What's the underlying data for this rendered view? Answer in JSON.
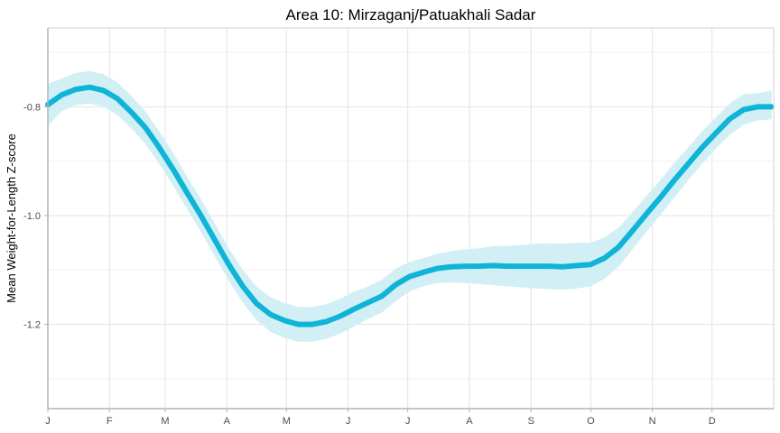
{
  "chart_data": {
    "type": "line",
    "title": "Area 10: Mirzaganj/Patuakhali Sadar",
    "xlabel": "",
    "ylabel": "Mean Weight-for-Length Z-score",
    "x_ticks": [
      "J",
      "F",
      "M",
      "A",
      "M",
      "J",
      "J",
      "A",
      "S",
      "O",
      "N",
      "D"
    ],
    "y_ticks": [
      -0.8,
      -1.0,
      -1.2
    ],
    "y_tick_labels": [
      "-0.8",
      "-1.0",
      "-1.2"
    ],
    "ylim": [
      -1.355,
      -0.655
    ],
    "xlim": [
      1,
      366
    ],
    "grid": true,
    "colors": {
      "line": "#0fb4d6",
      "band": "#d2eff6",
      "grid": "#e3e3e3",
      "axis": "#b3b3b3"
    },
    "series": [
      {
        "x": [
          1,
          8,
          15,
          22,
          29,
          36,
          43,
          50,
          57,
          64,
          71,
          78,
          85,
          92,
          99,
          106,
          113,
          120,
          127,
          134,
          141,
          148,
          155,
          162,
          169,
          176,
          183,
          190,
          197,
          204,
          211,
          218,
          225,
          232,
          239,
          246,
          253,
          260,
          267,
          274,
          281,
          288,
          295,
          302,
          309,
          316,
          323,
          330,
          337,
          344,
          351,
          358,
          365
        ],
        "y": [
          -0.796,
          -0.778,
          -0.768,
          -0.764,
          -0.77,
          -0.785,
          -0.81,
          -0.838,
          -0.875,
          -0.915,
          -0.958,
          -1.0,
          -1.045,
          -1.09,
          -1.13,
          -1.162,
          -1.182,
          -1.193,
          -1.2,
          -1.2,
          -1.195,
          -1.185,
          -1.172,
          -1.16,
          -1.148,
          -1.127,
          -1.112,
          -1.104,
          -1.097,
          -1.094,
          -1.093,
          -1.093,
          -1.092,
          -1.093,
          -1.093,
          -1.093,
          -1.093,
          -1.094,
          -1.092,
          -1.09,
          -1.078,
          -1.058,
          -1.028,
          -0.997,
          -0.967,
          -0.935,
          -0.905,
          -0.875,
          -0.848,
          -0.822,
          -0.805,
          -0.8,
          -0.8
        ],
        "ci_lower": [
          -0.835,
          -0.808,
          -0.797,
          -0.794,
          -0.8,
          -0.815,
          -0.84,
          -0.868,
          -0.905,
          -0.945,
          -0.988,
          -1.03,
          -1.075,
          -1.12,
          -1.16,
          -1.193,
          -1.214,
          -1.225,
          -1.232,
          -1.232,
          -1.227,
          -1.217,
          -1.204,
          -1.19,
          -1.178,
          -1.157,
          -1.139,
          -1.13,
          -1.124,
          -1.123,
          -1.124,
          -1.126,
          -1.128,
          -1.13,
          -1.132,
          -1.134,
          -1.135,
          -1.136,
          -1.134,
          -1.13,
          -1.116,
          -1.094,
          -1.062,
          -1.03,
          -0.999,
          -0.967,
          -0.935,
          -0.905,
          -0.877,
          -0.851,
          -0.833,
          -0.825,
          -0.823
        ],
        "ci_upper": [
          -0.758,
          -0.748,
          -0.738,
          -0.734,
          -0.74,
          -0.755,
          -0.78,
          -0.808,
          -0.845,
          -0.885,
          -0.928,
          -0.97,
          -1.015,
          -1.06,
          -1.1,
          -1.131,
          -1.15,
          -1.161,
          -1.168,
          -1.168,
          -1.163,
          -1.153,
          -1.14,
          -1.13,
          -1.118,
          -1.097,
          -1.085,
          -1.078,
          -1.07,
          -1.065,
          -1.062,
          -1.06,
          -1.056,
          -1.056,
          -1.054,
          -1.052,
          -1.051,
          -1.052,
          -1.05,
          -1.05,
          -1.04,
          -1.022,
          -0.994,
          -0.964,
          -0.935,
          -0.903,
          -0.875,
          -0.845,
          -0.819,
          -0.793,
          -0.777,
          -0.775,
          -0.77
        ]
      }
    ]
  }
}
